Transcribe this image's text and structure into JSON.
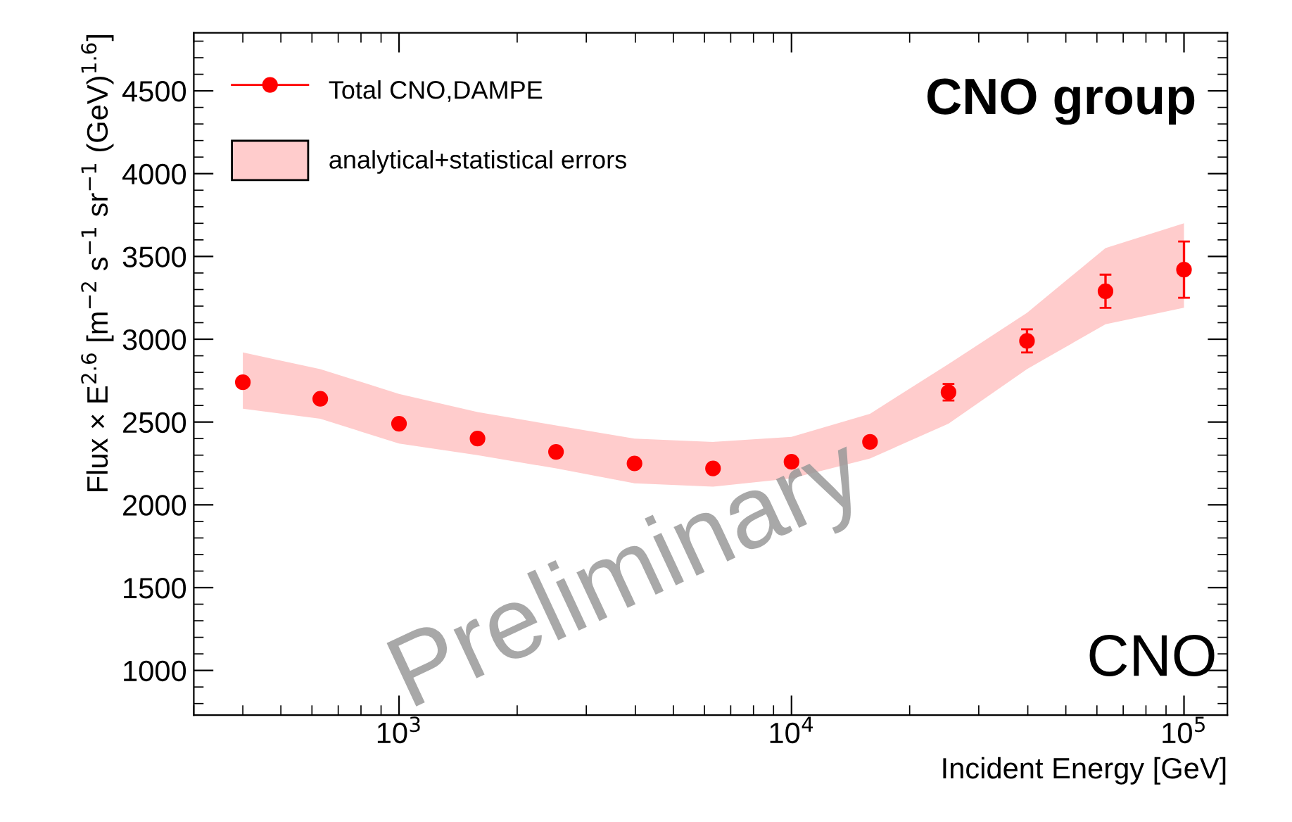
{
  "chart_data": {
    "type": "scatter",
    "xlabel": "Incident Energy [GeV]",
    "ylabel": "Flux × E$^{2.6}$ [m$^{−2}$ s$^{−1}$ sr$^{−1}$ (GeV)$^{1.6}$]",
    "log": "x",
    "xlim": [
      300,
      129000
    ],
    "xticks": [
      {
        "value": 1000,
        "label": "10$^{3}$"
      },
      {
        "value": 10000,
        "label": "10$^{4}$"
      },
      {
        "value": 100000,
        "label": "10$^{5}$"
      }
    ],
    "ylim": [
      730,
      4850
    ],
    "yticks": [
      1000,
      1500,
      2000,
      2500,
      3000,
      3500,
      4000,
      4500
    ],
    "grid": false,
    "legend": "top left",
    "series": [
      {
        "type": "area",
        "name": "analytical+statistical errors",
        "color": "#ffcccc",
        "x": [
          400,
          630,
          1000,
          1585,
          2512,
          3981,
          6310,
          10000,
          15850,
          25120,
          39810,
          63100,
          100000
        ],
        "values": [
          null,
          null,
          null,
          null,
          null,
          null,
          null,
          null,
          null,
          null,
          null,
          null,
          null
        ],
        "lower": [
          2580,
          2520,
          2370,
          2300,
          2220,
          2130,
          2110,
          2160,
          2280,
          2490,
          2820,
          3090,
          3190
        ],
        "upper": [
          2920,
          2820,
          2670,
          2560,
          2480,
          2400,
          2380,
          2410,
          2550,
          2850,
          3160,
          3550,
          3700
        ]
      },
      {
        "name": "Total CNO,DAMPE",
        "color": "#ff0000",
        "marker": "circle",
        "x": [
          400,
          630,
          1000,
          1585,
          2512,
          3981,
          6310,
          10000,
          15850,
          25120,
          39810,
          63100,
          100000
        ],
        "values": [
          2740,
          2640,
          2490,
          2400,
          2320,
          2250,
          2220,
          2260,
          2380,
          2680,
          2990,
          3290,
          3420
        ],
        "errors": [
          null,
          null,
          null,
          null,
          null,
          null,
          null,
          null,
          null,
          50,
          70,
          100,
          170
        ]
      }
    ],
    "annotations": [
      "CNO group",
      "CNO",
      "Preliminary"
    ]
  }
}
